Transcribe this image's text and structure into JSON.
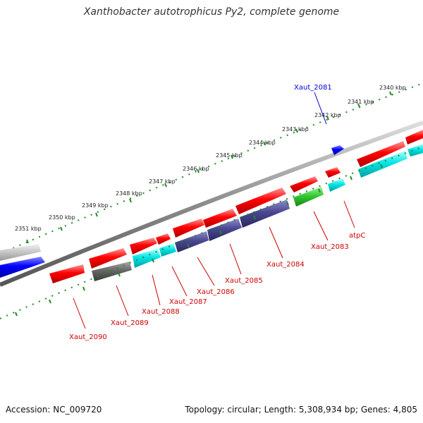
{
  "title": "Xanthobacter autotrophicus Py2, complete genome",
  "footer": {
    "accession": "Accession: NC_009720",
    "topology": "Topology: circular; Length: 5,308,934 bp; Genes: 4,805"
  },
  "scale_labels": [
    "2340 kbp",
    "2341 kbp",
    "2342 kbp",
    "2343 kbp",
    "2344 kbp",
    "2345 kbp",
    "2346 kbp",
    "2347 kbp",
    "2348 kbp",
    "2349 kbp",
    "2350 kbp",
    "2351 kbp"
  ],
  "gene_labels": [
    {
      "text": "Xaut_2081",
      "color": "#0000cc"
    },
    {
      "text": "atpC",
      "color": "#cc0000"
    },
    {
      "text": "Xaut_2083",
      "color": "#cc0000"
    },
    {
      "text": "Xaut_2084",
      "color": "#cc0000"
    },
    {
      "text": "Xaut_2085",
      "color": "#cc0000"
    },
    {
      "text": "Xaut_2086",
      "color": "#cc0000"
    },
    {
      "text": "Xaut_2087",
      "color": "#cc0000"
    },
    {
      "text": "Xaut_2088",
      "color": "#cc0000"
    },
    {
      "text": "Xaut_2089",
      "color": "#cc0000"
    },
    {
      "text": "Xaut_2090",
      "color": "#cc0000"
    }
  ],
  "colors": {
    "red": "#ff0000",
    "blue": "#0000ff",
    "cyan": "#00e5e5",
    "navy": "#4a478f",
    "green": "#33cc33",
    "darkgray": "#666666",
    "lightgray": "#c8c8c8",
    "backbone": "#8c8c8c",
    "tick": "#228822"
  }
}
